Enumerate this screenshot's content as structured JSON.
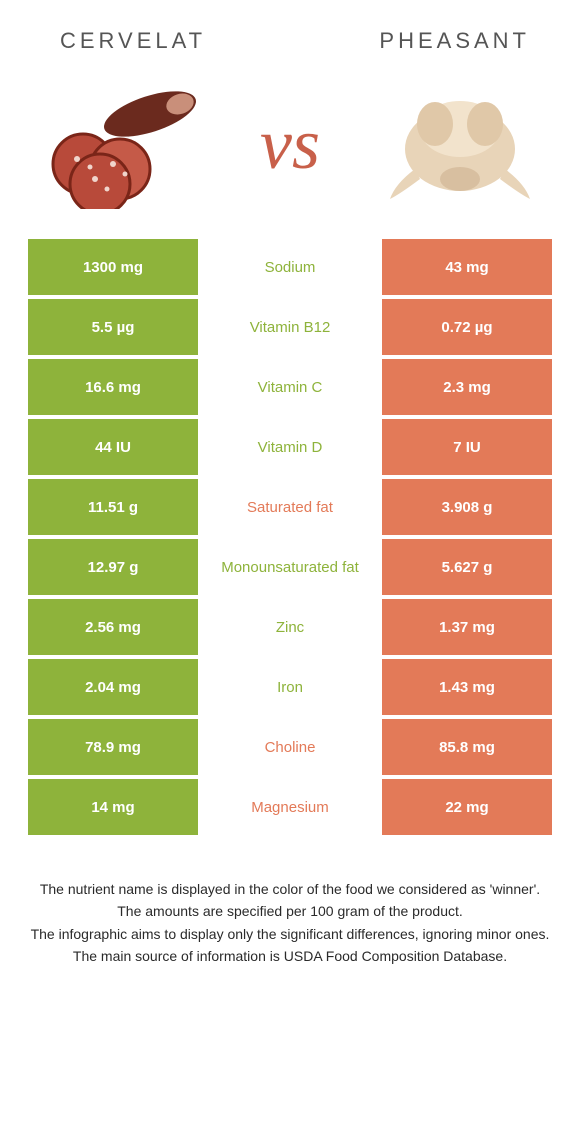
{
  "colors": {
    "green": "#8eb33b",
    "orange": "#e37a58",
    "vs": "#c8604a",
    "title": "#555555",
    "footer": "#2a2a2a"
  },
  "leftTitle": "Cervelat",
  "rightTitle": "Pheasant",
  "vsLabel": "vs",
  "rows": [
    {
      "left": "1300 mg",
      "label": "Sodium",
      "right": "43 mg",
      "winner": "green"
    },
    {
      "left": "5.5 µg",
      "label": "Vitamin B12",
      "right": "0.72 µg",
      "winner": "green"
    },
    {
      "left": "16.6 mg",
      "label": "Vitamin C",
      "right": "2.3 mg",
      "winner": "green"
    },
    {
      "left": "44 IU",
      "label": "Vitamin D",
      "right": "7 IU",
      "winner": "green"
    },
    {
      "left": "11.51 g",
      "label": "Saturated fat",
      "right": "3.908 g",
      "winner": "orange"
    },
    {
      "left": "12.97 g",
      "label": "Monounsaturated fat",
      "right": "5.627 g",
      "winner": "green"
    },
    {
      "left": "2.56 mg",
      "label": "Zinc",
      "right": "1.37 mg",
      "winner": "green"
    },
    {
      "left": "2.04 mg",
      "label": "Iron",
      "right": "1.43 mg",
      "winner": "green"
    },
    {
      "left": "78.9 mg",
      "label": "Choline",
      "right": "85.8 mg",
      "winner": "orange"
    },
    {
      "left": "14 mg",
      "label": "Magnesium",
      "right": "22 mg",
      "winner": "orange"
    }
  ],
  "footer": [
    "The nutrient name is displayed in the color of the food we considered as 'winner'.",
    "The amounts are specified per 100 gram of the product.",
    "The infographic aims to display only the significant differences, ignoring minor ones.",
    "The main source of information is USDA Food Composition Database."
  ]
}
